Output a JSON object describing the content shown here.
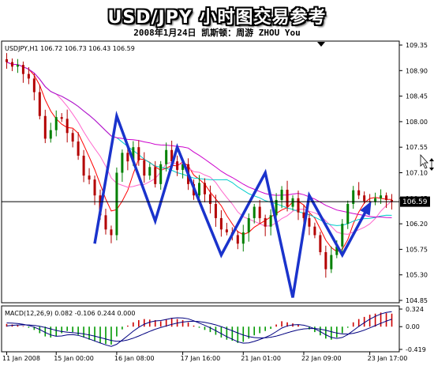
{
  "header": {
    "title": "USD/JPY 小时图交易参考",
    "subtitle": "2008年1月24日  凯斯顿：周游 ZHOU You"
  },
  "chart_data": [
    {
      "type": "candlestick",
      "symbol_line": "USDJPY,H1  106.72 106.73 106.43 106.59",
      "current_price": 106.59,
      "current_price_label": "106.59",
      "y_ticks": [
        "109.35",
        "108.90",
        "108.45",
        "108.00",
        "107.55",
        "107.10",
        "106.65",
        "106.20",
        "105.75",
        "105.30",
        "104.85"
      ],
      "y_tick_values": [
        109.35,
        108.9,
        108.45,
        108.0,
        107.55,
        107.1,
        106.65,
        106.2,
        105.75,
        105.3,
        104.85
      ],
      "x_ticks": [
        "11 Jan 2008",
        "15 Jan 00:00",
        "16 Jan 08:00",
        "17 Jan 16:00",
        "21 Jan 01:00",
        "22 Jan 09:00",
        "23 Jan 17:00"
      ],
      "x_tick_index": [
        0,
        9,
        20,
        32,
        43,
        54,
        66
      ],
      "candle_count": 71,
      "candle_closes": [
        109.05,
        108.97,
        109.0,
        108.84,
        108.76,
        108.52,
        108.1,
        107.7,
        107.85,
        108.08,
        108.05,
        107.8,
        107.65,
        107.4,
        107.05,
        106.98,
        106.7,
        106.35,
        106.1,
        106.0,
        107.1,
        107.45,
        107.3,
        107.55,
        107.32,
        107.05,
        107.2,
        106.9,
        107.25,
        107.5,
        107.3,
        107.15,
        107.25,
        106.9,
        106.7,
        106.92,
        106.72,
        106.55,
        106.3,
        106.1,
        106.05,
        106.0,
        105.85,
        106.05,
        106.3,
        106.5,
        106.3,
        106.15,
        106.35,
        106.62,
        106.8,
        106.5,
        106.65,
        106.4,
        106.3,
        106.15,
        106.0,
        105.7,
        105.4,
        105.65,
        105.8,
        106.2,
        106.55,
        106.79,
        106.7,
        106.6,
        106.59,
        106.65,
        106.7,
        106.62,
        106.59
      ],
      "moving_averages": [
        {
          "color": "#ff0000",
          "period": 5
        },
        {
          "color": "#ff66cc",
          "period": 10
        },
        {
          "color": "#00cccc",
          "period": 21
        },
        {
          "color": "#cc00cc",
          "period": 34
        }
      ],
      "forecast_path": [
        [
          16,
          105.85
        ],
        [
          20,
          108.1
        ],
        [
          27,
          106.25
        ],
        [
          31,
          107.55
        ],
        [
          39,
          105.65
        ],
        [
          47,
          107.1
        ],
        [
          52,
          104.9
        ],
        [
          55,
          106.7
        ],
        [
          61,
          105.65
        ],
        [
          66,
          106.55
        ]
      ],
      "forecast_color": "#1a33cc"
    },
    {
      "type": "macd",
      "label": "MACD(12,26,9) 0.082 -0.106 0.244 0.000",
      "y_ticks": [
        "0.324",
        "0.00",
        "-0.419"
      ],
      "y_tick_values": [
        0.324,
        0.0,
        -0.419
      ],
      "histogram": [
        0.05,
        0.04,
        0.03,
        0.01,
        -0.02,
        -0.06,
        -0.12,
        -0.18,
        -0.2,
        -0.18,
        -0.12,
        -0.08,
        -0.1,
        -0.15,
        -0.2,
        -0.24,
        -0.27,
        -0.3,
        -0.32,
        -0.33,
        -0.18,
        -0.05,
        0.02,
        0.08,
        0.12,
        0.14,
        0.13,
        0.12,
        0.1,
        0.14,
        0.16,
        0.14,
        0.12,
        0.08,
        0.02,
        -0.02,
        -0.06,
        -0.1,
        -0.15,
        -0.2,
        -0.24,
        -0.26,
        -0.3,
        -0.28,
        -0.22,
        -0.16,
        -0.12,
        -0.08,
        -0.04,
        0.04,
        0.1,
        0.08,
        0.06,
        0.04,
        0.0,
        -0.05,
        -0.1,
        -0.16,
        -0.22,
        -0.24,
        -0.2,
        -0.12,
        -0.02,
        0.08,
        0.14,
        0.18,
        0.22,
        0.24,
        0.26,
        0.25,
        0.24
      ],
      "macd_line_color": "#000080",
      "signal_line_color": "#000080"
    }
  ]
}
